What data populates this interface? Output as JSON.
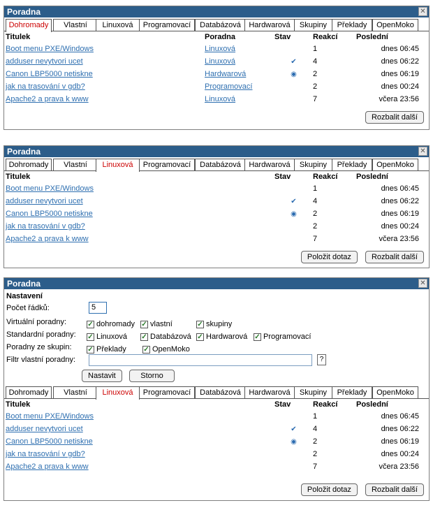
{
  "panel_title": "Poradna",
  "tabs": [
    "Dohromady",
    "Vlastní",
    "Linuxová",
    "Programovací",
    "Databázová",
    "Hardwarová",
    "Skupiny",
    "Překlady",
    "OpenMoko"
  ],
  "columns": {
    "title": "Titulek",
    "poradna": "Poradna",
    "stav": "Stav",
    "reakci": "Reakcí",
    "posledni": "Poslední"
  },
  "rows": [
    {
      "title": "Boot menu PXE/Windows",
      "poradna": "Linuxová",
      "stav": "",
      "reakci": "1",
      "posledni": "dnes 06:45"
    },
    {
      "title": "adduser nevytvori ucet",
      "poradna": "Linuxová",
      "stav": "check-icon",
      "reakci": "4",
      "posledni": "dnes 06:22"
    },
    {
      "title": "Canon LBP5000 netiskne",
      "poradna": "Hardwarová",
      "stav": "eye-icon",
      "reakci": "2",
      "posledni": "dnes 06:19"
    },
    {
      "title": "jak na trasování v gdb?",
      "poradna": "Programovací",
      "stav": "",
      "reakci": "2",
      "posledni": "dnes 00:24"
    },
    {
      "title": "Apache2 a prava k www",
      "poradna": "Linuxová",
      "stav": "",
      "reakci": "7",
      "posledni": "včera 23:56"
    }
  ],
  "buttons": {
    "ask": "Položit dotaz",
    "expand": "Rozbalit další",
    "set": "Nastavit",
    "cancel": "Storno"
  },
  "settings": {
    "heading": "Nastavení",
    "rows_label": "Počet řádků:",
    "rows_value": "5",
    "virtual_label": "Virtuální poradny:",
    "virtual": [
      "dohromady",
      "vlastní",
      "skupiny"
    ],
    "standard_label": "Standardní poradny:",
    "standard": [
      "Linuxová",
      "Databázová",
      "Hardwarová",
      "Programovací"
    ],
    "groups_label": "Poradny ze skupin:",
    "groups": [
      "Překlady",
      "OpenMoko"
    ],
    "filter_label": "Filtr vlastní poradny:",
    "filter_value": "",
    "help": "?"
  },
  "colors": {
    "titlebar": "#2c5d8a",
    "link": "#2e6fb0",
    "active_tab": "#cc0000"
  }
}
